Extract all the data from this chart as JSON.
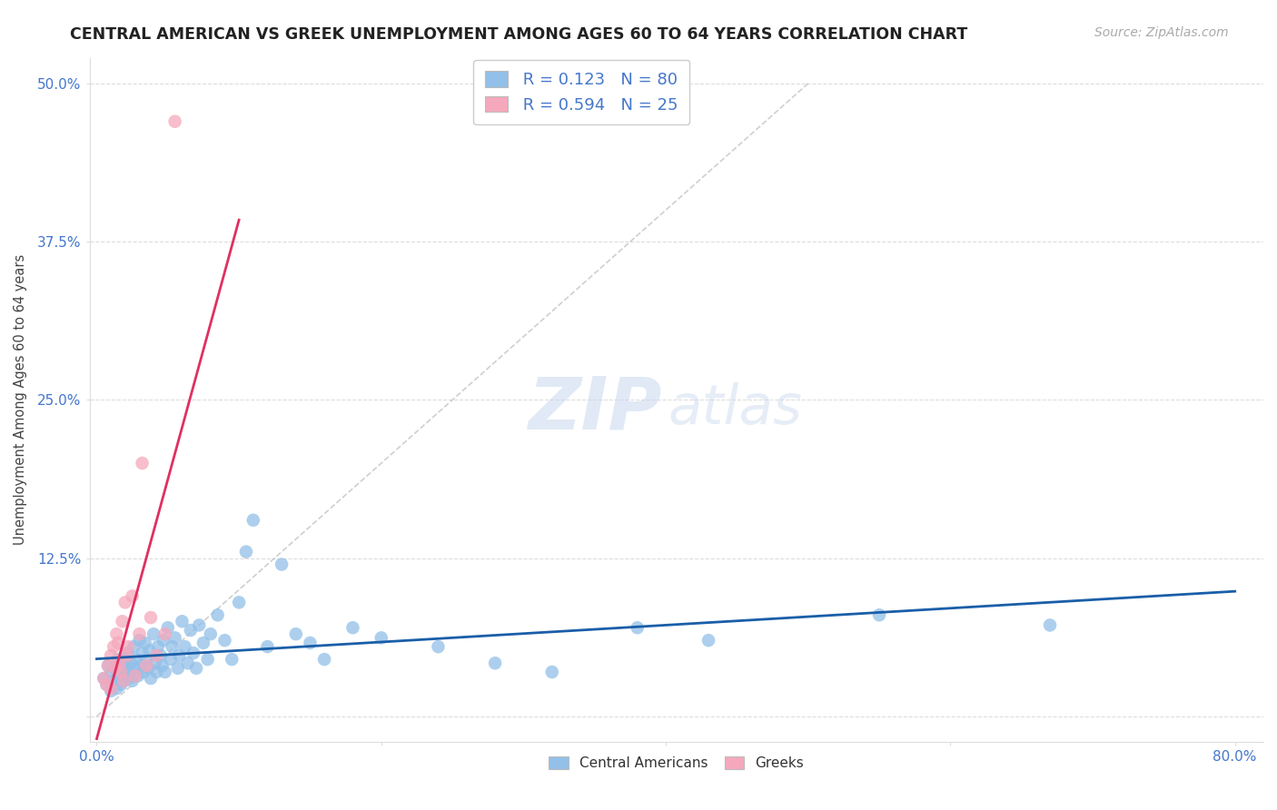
{
  "title": "CENTRAL AMERICAN VS GREEK UNEMPLOYMENT AMONG AGES 60 TO 64 YEARS CORRELATION CHART",
  "source": "Source: ZipAtlas.com",
  "ylabel": "Unemployment Among Ages 60 to 64 years",
  "xlim": [
    -0.005,
    0.82
  ],
  "ylim": [
    -0.02,
    0.52
  ],
  "xticks": [
    0.0,
    0.2,
    0.4,
    0.6,
    0.8
  ],
  "xtick_labels": [
    "0.0%",
    "",
    "",
    "",
    "80.0%"
  ],
  "yticks": [
    0.0,
    0.125,
    0.25,
    0.375,
    0.5
  ],
  "ytick_labels": [
    "",
    "12.5%",
    "25.0%",
    "37.5%",
    "50.0%"
  ],
  "r_blue": 0.123,
  "n_blue": 80,
  "r_pink": 0.594,
  "n_pink": 25,
  "blue_color": "#92C0E8",
  "pink_color": "#F5A8BC",
  "blue_line_color": "#1A5EA8",
  "pink_line_color": "#E03060",
  "ref_line_color": "#BBBBBB",
  "grid_color": "#DDDDDD",
  "watermark_zip": "ZIP",
  "watermark_atlas": "atlas",
  "legend_label_blue": "Central Americans",
  "legend_label_pink": "Greeks",
  "title_fontsize": 12.5,
  "source_fontsize": 10,
  "axis_label_fontsize": 10.5,
  "tick_fontsize": 11,
  "legend_fontsize": 13,
  "tick_color": "#4477CC",
  "blue_x": [
    0.005,
    0.007,
    0.008,
    0.01,
    0.01,
    0.012,
    0.013,
    0.014,
    0.015,
    0.015,
    0.016,
    0.017,
    0.018,
    0.018,
    0.019,
    0.02,
    0.02,
    0.021,
    0.022,
    0.022,
    0.023,
    0.024,
    0.025,
    0.026,
    0.027,
    0.028,
    0.029,
    0.03,
    0.031,
    0.032,
    0.033,
    0.034,
    0.035,
    0.036,
    0.037,
    0.038,
    0.04,
    0.041,
    0.042,
    0.043,
    0.045,
    0.046,
    0.047,
    0.048,
    0.05,
    0.052,
    0.053,
    0.055,
    0.057,
    0.058,
    0.06,
    0.062,
    0.064,
    0.066,
    0.068,
    0.07,
    0.072,
    0.075,
    0.078,
    0.08,
    0.085,
    0.09,
    0.095,
    0.1,
    0.105,
    0.11,
    0.12,
    0.13,
    0.14,
    0.15,
    0.16,
    0.18,
    0.2,
    0.24,
    0.28,
    0.32,
    0.38,
    0.43,
    0.55,
    0.67
  ],
  "blue_y": [
    0.03,
    0.025,
    0.04,
    0.02,
    0.035,
    0.028,
    0.038,
    0.022,
    0.045,
    0.032,
    0.038,
    0.025,
    0.03,
    0.042,
    0.028,
    0.035,
    0.045,
    0.038,
    0.03,
    0.05,
    0.035,
    0.042,
    0.028,
    0.055,
    0.038,
    0.045,
    0.032,
    0.06,
    0.04,
    0.05,
    0.035,
    0.058,
    0.045,
    0.038,
    0.052,
    0.03,
    0.065,
    0.042,
    0.035,
    0.055,
    0.048,
    0.04,
    0.06,
    0.035,
    0.07,
    0.045,
    0.055,
    0.062,
    0.038,
    0.048,
    0.075,
    0.055,
    0.042,
    0.068,
    0.05,
    0.038,
    0.072,
    0.058,
    0.045,
    0.065,
    0.08,
    0.06,
    0.045,
    0.09,
    0.13,
    0.155,
    0.055,
    0.12,
    0.065,
    0.058,
    0.045,
    0.07,
    0.062,
    0.055,
    0.042,
    0.035,
    0.07,
    0.06,
    0.08,
    0.072
  ],
  "pink_x": [
    0.005,
    0.007,
    0.008,
    0.01,
    0.01,
    0.012,
    0.013,
    0.014,
    0.015,
    0.016,
    0.017,
    0.018,
    0.019,
    0.02,
    0.021,
    0.022,
    0.025,
    0.027,
    0.03,
    0.032,
    0.035,
    0.038,
    0.042,
    0.048,
    0.055
  ],
  "pink_y": [
    0.03,
    0.025,
    0.04,
    0.022,
    0.048,
    0.055,
    0.038,
    0.065,
    0.058,
    0.042,
    0.035,
    0.075,
    0.028,
    0.09,
    0.048,
    0.055,
    0.095,
    0.032,
    0.065,
    0.2,
    0.04,
    0.078,
    0.048,
    0.065,
    0.47
  ],
  "blue_trend_x": [
    0.0,
    0.8
  ],
  "pink_trend_x": [
    0.0,
    0.1
  ],
  "ref_line_x": [
    0.0,
    0.5
  ],
  "ref_line_y": [
    0.0,
    0.5
  ]
}
